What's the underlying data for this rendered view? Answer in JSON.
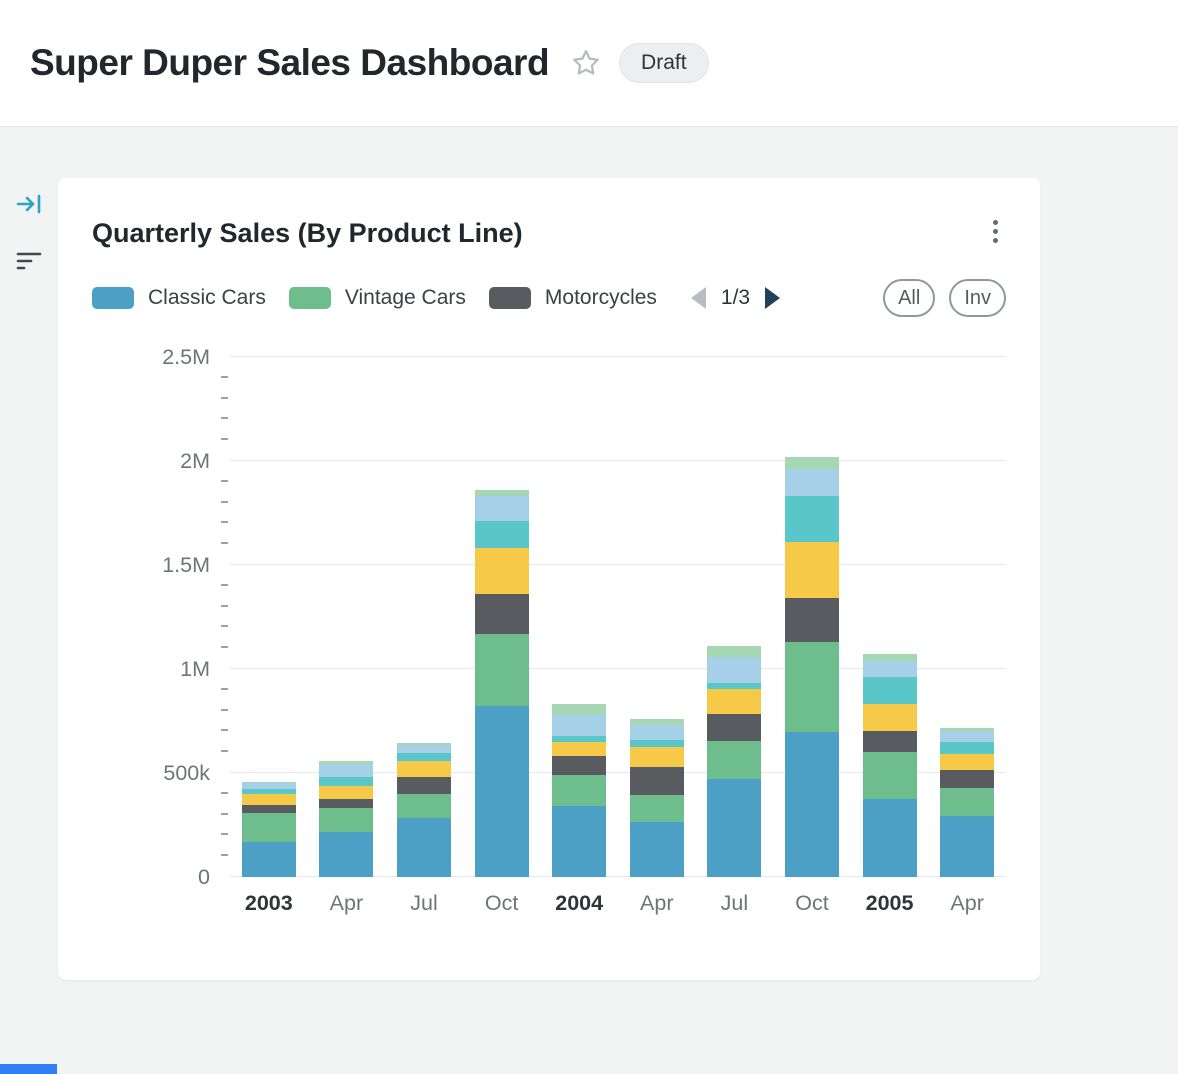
{
  "header": {
    "title": "Super Duper Sales Dashboard",
    "badge": "Draft"
  },
  "sidebar": {
    "icons": [
      {
        "name": "collapse-panel-icon",
        "color": "#2ba3c7"
      },
      {
        "name": "filter-icon",
        "color": "#42474c"
      }
    ]
  },
  "card": {
    "title": "Quarterly Sales (By Product Line)",
    "pagination": {
      "current": "1/3"
    },
    "buttons": {
      "all": "All",
      "inv": "Inv"
    }
  },
  "colors": {
    "page_background": "#f2f3f3",
    "card_background": "#ffffff",
    "accent_teal": "#2ba3c7",
    "bottom_strip_blue": "#2e7ef5",
    "gridline": "#e5e7e9"
  },
  "chart_data": {
    "type": "bar",
    "stacked": true,
    "title": "Quarterly Sales (By Product Line)",
    "legend_position": "top",
    "unit": "thousands",
    "categories": [
      "2003",
      "Apr",
      "Jul",
      "Oct",
      "2004",
      "Apr",
      "Jul",
      "Oct",
      "2005",
      "Apr"
    ],
    "bold_category_indices": [
      0,
      4,
      8
    ],
    "series": [
      {
        "name": "Classic Cars",
        "color": "#4c9fc5",
        "in_legend": true,
        "values": [
          170,
          215,
          285,
          820,
          340,
          265,
          470,
          695,
          375,
          295
        ]
      },
      {
        "name": "Vintage Cars",
        "color": "#6ebd8d",
        "in_legend": true,
        "values": [
          140,
          115,
          115,
          350,
          150,
          130,
          185,
          435,
          225,
          135
        ]
      },
      {
        "name": "Motorcycles",
        "color": "#585c61",
        "in_legend": true,
        "values": [
          35,
          45,
          80,
          190,
          90,
          135,
          130,
          210,
          100,
          85
        ]
      },
      {
        "name": "series-yellow",
        "color": "#f6c948",
        "in_legend": false,
        "values": [
          55,
          65,
          80,
          220,
          70,
          95,
          120,
          270,
          130,
          75
        ]
      },
      {
        "name": "series-teal",
        "color": "#59c7c9",
        "in_legend": false,
        "values": [
          25,
          40,
          35,
          130,
          30,
          35,
          30,
          220,
          130,
          60
        ]
      },
      {
        "name": "series-light-blue",
        "color": "#a6cfe8",
        "in_legend": false,
        "values": [
          25,
          65,
          40,
          120,
          100,
          70,
          125,
          130,
          80,
          50
        ]
      },
      {
        "name": "series-light-green",
        "color": "#a6d7b2",
        "in_legend": false,
        "values": [
          5,
          15,
          10,
          30,
          50,
          30,
          50,
          60,
          30,
          15
        ]
      }
    ],
    "y_axis": {
      "labels": [
        "0",
        "500k",
        "1M",
        "1.5M",
        "2M",
        "2.5M"
      ],
      "max": 2500,
      "major_step": 500,
      "minor_step": 100,
      "ylim": [
        0,
        2500
      ]
    },
    "grid": true
  }
}
